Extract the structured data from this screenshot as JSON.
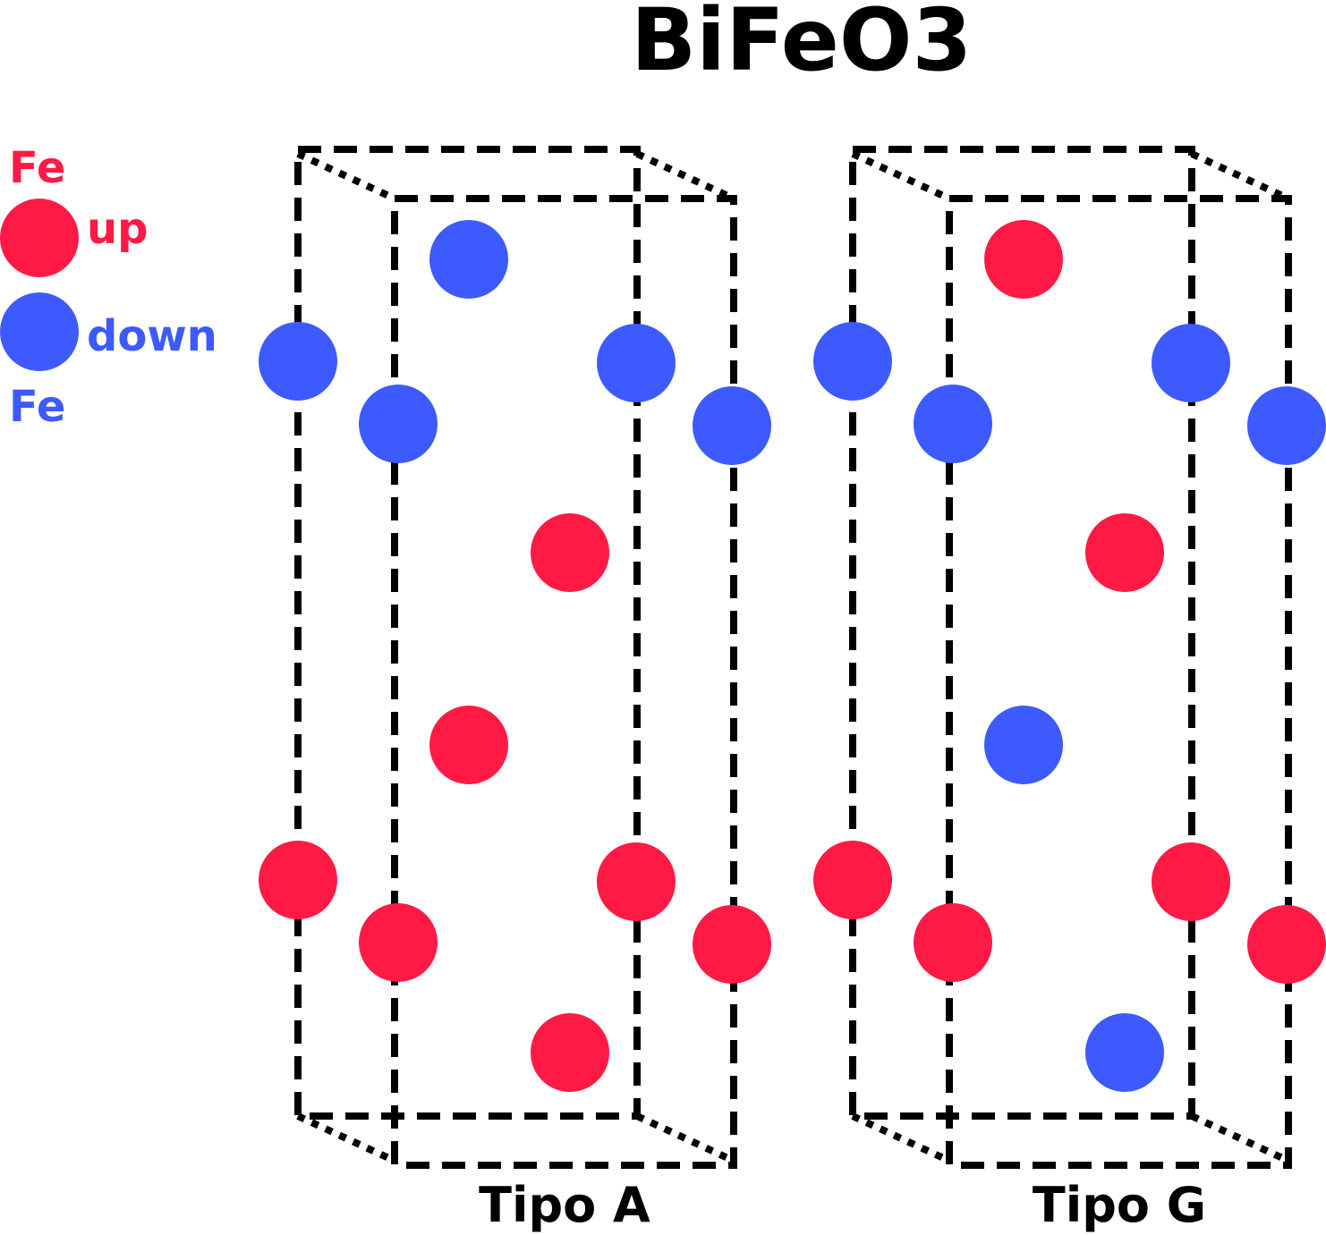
{
  "title": "BiFeO3",
  "colors": {
    "up": "#ff1a45",
    "down": "#3d5afe"
  },
  "legend": {
    "top_label": "Fe",
    "up_label": "up",
    "down_label": "down",
    "bottom_label": "Fe"
  },
  "cells": [
    {
      "label": "Tipo A",
      "spins": [
        "down",
        "down",
        "down",
        "down",
        "down",
        "up",
        "up",
        "up",
        "up",
        "up"
      ]
    },
    {
      "label": "Tipo G",
      "spins": [
        "up",
        "down",
        "down",
        "down",
        "down",
        "up",
        "down",
        "up",
        "up",
        "up"
      ]
    }
  ]
}
